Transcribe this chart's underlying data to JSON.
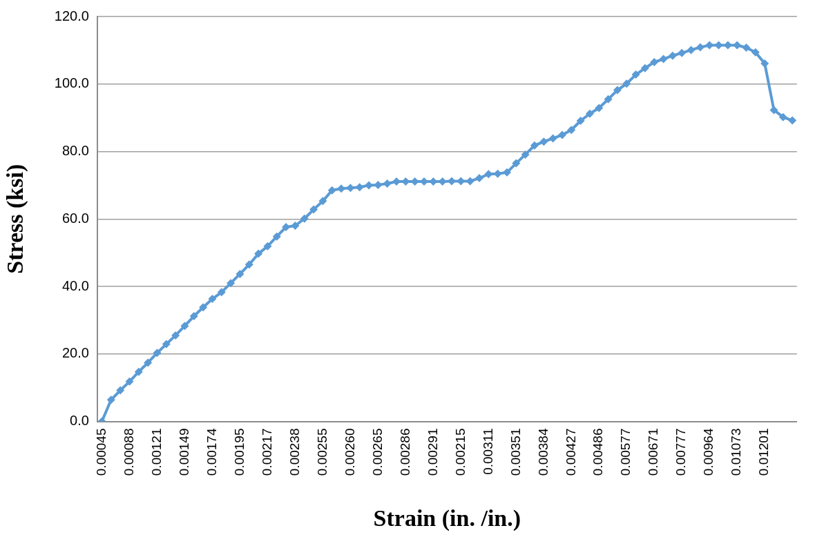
{
  "chart_data": {
    "type": "line",
    "xlabel": "Strain (in. /in.)",
    "ylabel": "Stress (ksi)",
    "categories": [
      "0.00045",
      null,
      null,
      "0.00088",
      null,
      null,
      "0.00121",
      null,
      null,
      "0.00149",
      null,
      null,
      "0.00174",
      null,
      null,
      "0.00195",
      null,
      null,
      "0.00217",
      null,
      null,
      "0.00238",
      null,
      null,
      "0.00255",
      null,
      null,
      "0.00260",
      null,
      null,
      "0.00265",
      null,
      null,
      "0.00286",
      null,
      null,
      "0.00291",
      null,
      null,
      "0.00215",
      null,
      null,
      "0.00311",
      null,
      null,
      "0.00351",
      null,
      null,
      "0.00384",
      null,
      null,
      "0.00427",
      null,
      null,
      "0.00486",
      null,
      null,
      "0.00577",
      null,
      null,
      "0.00671",
      null,
      null,
      "0.00777",
      null,
      null,
      "0.00964",
      null,
      null,
      "0.01073",
      null,
      null,
      "0.01201",
      null,
      null,
      null
    ],
    "series": [
      {
        "color": "#5b9bd5",
        "values": [
          0,
          6.4,
          9.2,
          11.8,
          14.7,
          17.4,
          20.3,
          22.9,
          25.5,
          28.3,
          31.2,
          33.8,
          36.3,
          38.3,
          41.0,
          43.7,
          46.5,
          49.7,
          51.9,
          54.8,
          57.6,
          58.0,
          60.1,
          62.8,
          65.3,
          68.5,
          69.0,
          69.2,
          69.4,
          70.0,
          70.1,
          70.5,
          71.1,
          71.1,
          71.1,
          71.1,
          71.1,
          71.1,
          71.2,
          71.2,
          71.2,
          72.1,
          73.3,
          73.4,
          73.8,
          76.5,
          79.1,
          81.8,
          82.9,
          83.9,
          84.9,
          86.4,
          89.1,
          91.2,
          92.9,
          95.5,
          98.2,
          100.1,
          102.8,
          104.7,
          106.5,
          107.4,
          108.4,
          109.2,
          110.1,
          110.9,
          111.5,
          111.5,
          111.5,
          111.5,
          110.8,
          109.4,
          106.1,
          92.3,
          90.2,
          89.2
        ]
      }
    ],
    "ylim": [
      0,
      120
    ],
    "yticks": [
      {
        "value": 0,
        "label": "0.0"
      },
      {
        "value": 20,
        "label": "20.0"
      },
      {
        "value": 40,
        "label": "40.0"
      },
      {
        "value": 60,
        "label": "60.0"
      },
      {
        "value": 80,
        "label": "80.0"
      },
      {
        "value": 100,
        "label": "100.0"
      },
      {
        "value": 120,
        "label": "120.0"
      }
    ],
    "grid": "y",
    "legend": false,
    "marker": "diamond",
    "line_style": "solid"
  }
}
